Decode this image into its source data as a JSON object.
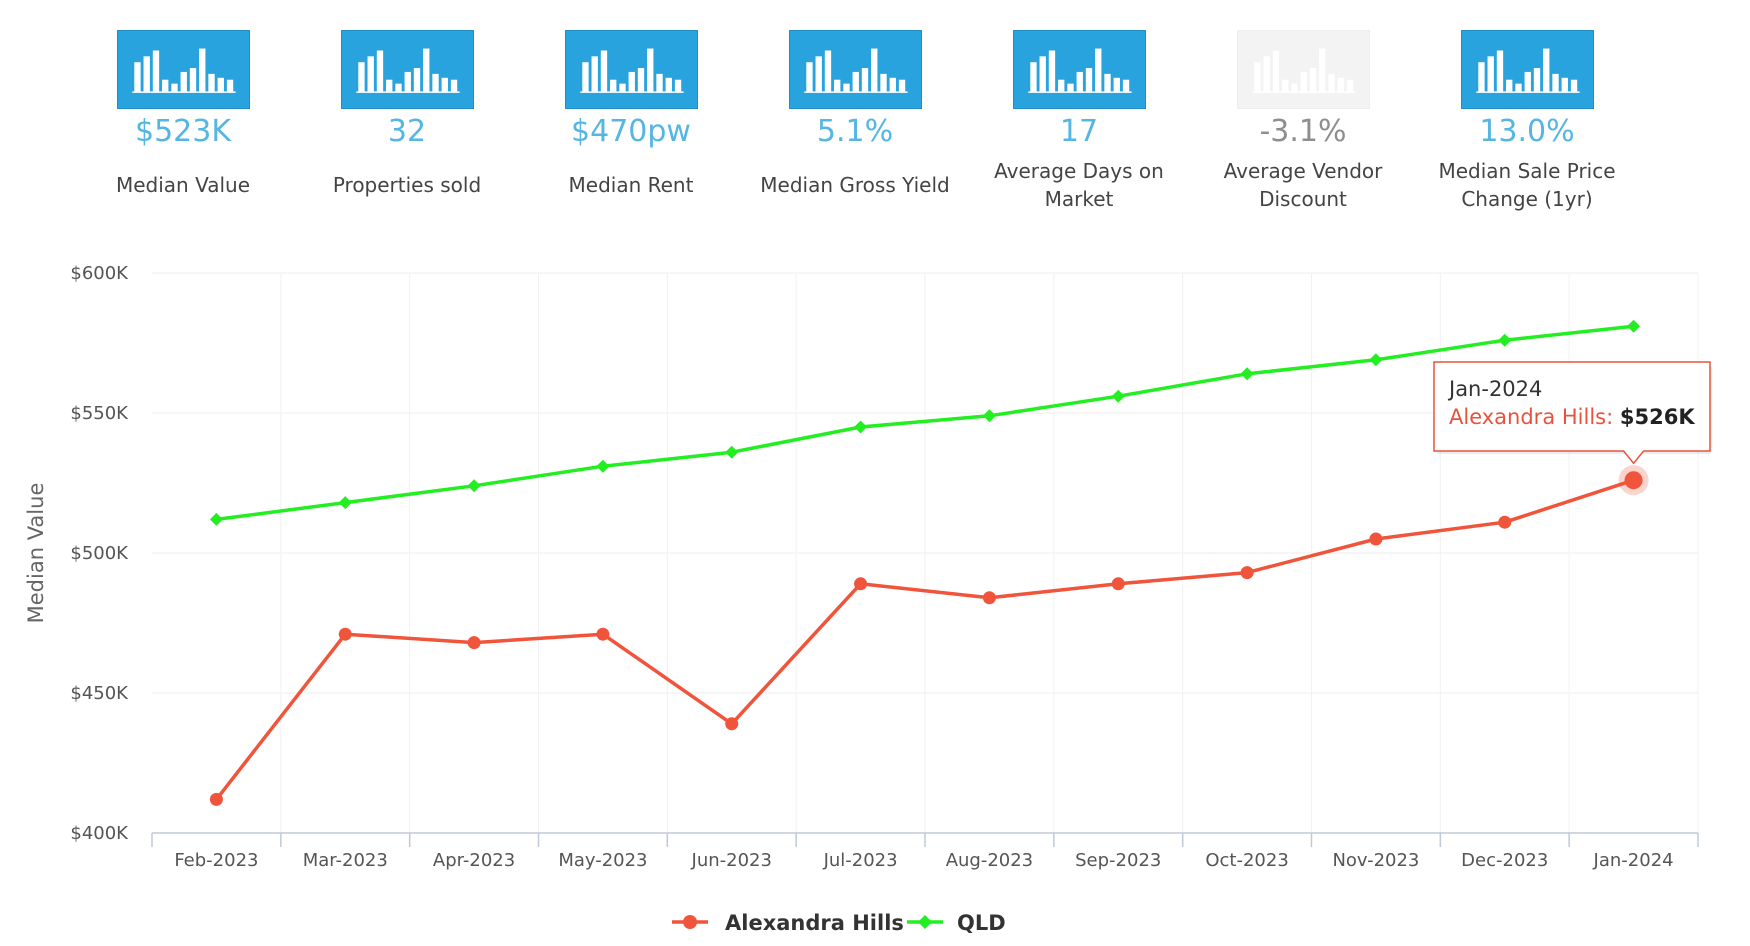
{
  "stats": [
    {
      "value": "$523K",
      "label": "Median Value",
      "icon": "bar-chart-icon",
      "muted": false
    },
    {
      "value": "32",
      "label": "Properties sold",
      "icon": "bar-chart-icon",
      "muted": false
    },
    {
      "value": "$470pw",
      "label": "Median Rent",
      "icon": "bar-chart-icon",
      "muted": false
    },
    {
      "value": "5.1%",
      "label": "Median Gross Yield",
      "icon": "bar-chart-icon",
      "muted": false
    },
    {
      "value": "17",
      "label": "Average Days on Market",
      "icon": "bar-chart-icon",
      "muted": false
    },
    {
      "value": "-3.1%",
      "label": "Average Vendor Discount",
      "icon": "bar-chart-icon",
      "muted": true
    },
    {
      "value": "13.0%",
      "label": "Median Sale Price Change (1yr)",
      "icon": "bar-chart-icon",
      "muted": false
    }
  ],
  "colors": {
    "tile": "#29a3dd",
    "tile_muted": "#f3f3f3",
    "value_text": "#55b6e3",
    "alexandra_hills": "#f0543a",
    "qld": "#22ee22"
  },
  "chart_data": {
    "type": "line",
    "title": "",
    "xlabel": "",
    "ylabel": "Median Value",
    "categories": [
      "Feb-2023",
      "Mar-2023",
      "Apr-2023",
      "May-2023",
      "Jun-2023",
      "Jul-2023",
      "Aug-2023",
      "Sep-2023",
      "Oct-2023",
      "Nov-2023",
      "Dec-2023",
      "Jan-2024"
    ],
    "ylim": [
      400000,
      600000
    ],
    "yticks": [
      400000,
      450000,
      500000,
      550000,
      600000
    ],
    "ytick_labels": [
      "$400K",
      "$450K",
      "$500K",
      "$550K",
      "$600K"
    ],
    "grid": true,
    "legend_position": "bottom-center",
    "series": [
      {
        "name": "Alexandra Hills",
        "color": "#f0543a",
        "marker": "circle",
        "values": [
          412000,
          471000,
          468000,
          471000,
          439000,
          489000,
          484000,
          489000,
          493000,
          505000,
          511000,
          526000
        ]
      },
      {
        "name": "QLD",
        "color": "#22ee22",
        "marker": "diamond",
        "values": [
          512000,
          518000,
          524000,
          531000,
          536000,
          545000,
          549000,
          556000,
          564000,
          569000,
          576000,
          581000
        ]
      }
    ],
    "tooltip": {
      "date": "Jan-2024",
      "series": "Alexandra Hills",
      "separator": ": ",
      "value": "$526K"
    }
  }
}
